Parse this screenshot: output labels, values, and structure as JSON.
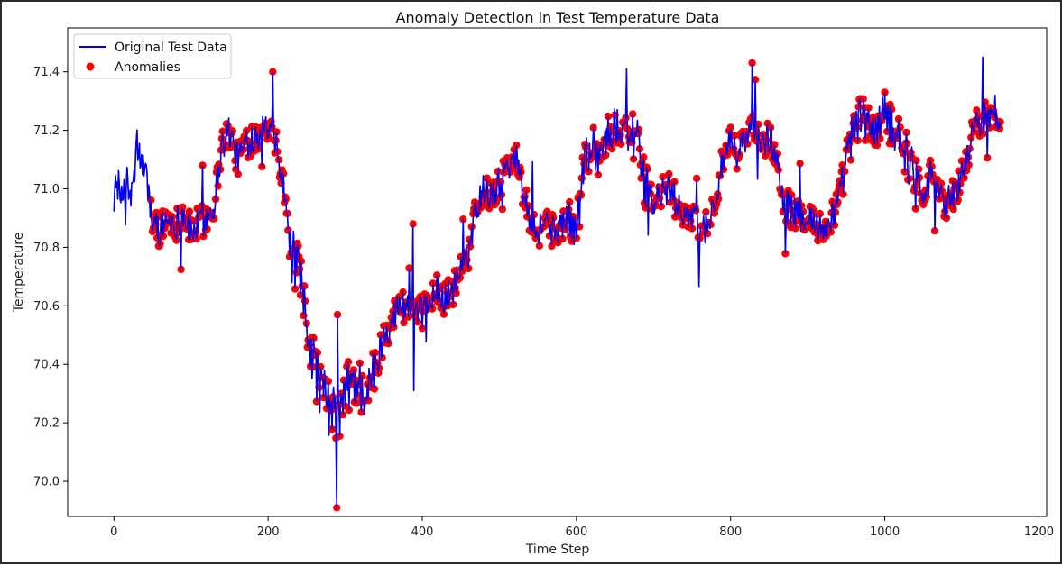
{
  "chart_data": {
    "type": "line",
    "title": "Anomaly Detection in Test Temperature Data",
    "xlabel": "Time Step",
    "ylabel": "Temperature",
    "xlim": [
      -60,
      1210
    ],
    "ylim": [
      69.88,
      71.55
    ],
    "x_ticks": [
      0,
      200,
      400,
      600,
      800,
      1000,
      1200
    ],
    "x_tick_labels": [
      "0",
      "200",
      "400",
      "600",
      "800",
      "1000",
      "1200"
    ],
    "y_ticks": [
      70.0,
      70.2,
      70.4,
      70.6,
      70.8,
      71.0,
      71.2,
      71.4
    ],
    "y_tick_labels": [
      "70.0",
      "70.2",
      "70.4",
      "70.6",
      "70.8",
      "71.0",
      "71.2",
      "71.4"
    ],
    "grid": false,
    "legend_position": "top-left",
    "anomaly_start_step": 48,
    "series": [
      {
        "name": "Original Test Data",
        "kind": "line",
        "color": "#0000ee",
        "x": [
          0,
          5,
          10,
          15,
          20,
          25,
          30,
          35,
          40,
          45,
          50,
          60,
          70,
          80,
          90,
          100,
          110,
          120,
          130,
          140,
          150,
          160,
          170,
          180,
          190,
          200,
          210,
          220,
          230,
          240,
          250,
          260,
          270,
          280,
          290,
          300,
          310,
          320,
          330,
          340,
          350,
          360,
          370,
          380,
          390,
          400,
          410,
          420,
          430,
          440,
          450,
          460,
          470,
          480,
          490,
          500,
          510,
          520,
          530,
          540,
          550,
          560,
          570,
          580,
          590,
          600,
          610,
          620,
          630,
          640,
          650,
          660,
          670,
          680,
          690,
          700,
          710,
          720,
          730,
          740,
          750,
          760,
          770,
          780,
          790,
          800,
          810,
          820,
          830,
          840,
          850,
          860,
          870,
          880,
          890,
          900,
          910,
          920,
          930,
          940,
          950,
          960,
          970,
          980,
          990,
          1000,
          1010,
          1020,
          1030,
          1040,
          1050,
          1060,
          1070,
          1080,
          1090,
          1100,
          1110,
          1120,
          1130,
          1140,
          1150
        ],
        "y": [
          70.98,
          71.02,
          70.95,
          71.05,
          70.97,
          71.0,
          71.15,
          71.1,
          71.05,
          71.0,
          70.88,
          70.86,
          70.9,
          70.88,
          70.92,
          70.85,
          70.88,
          70.9,
          70.95,
          71.15,
          71.2,
          71.1,
          71.15,
          71.18,
          71.2,
          71.2,
          71.15,
          71.0,
          70.78,
          70.7,
          70.55,
          70.4,
          70.3,
          70.25,
          70.2,
          70.3,
          70.35,
          70.32,
          70.3,
          70.38,
          70.5,
          70.55,
          70.6,
          70.6,
          70.55,
          70.58,
          70.62,
          70.65,
          70.62,
          70.66,
          70.72,
          70.78,
          70.95,
          71.0,
          70.98,
          71.02,
          71.08,
          71.12,
          71.0,
          70.9,
          70.85,
          70.9,
          70.85,
          70.88,
          70.9,
          70.85,
          71.1,
          71.15,
          71.12,
          71.18,
          71.2,
          71.22,
          71.2,
          71.15,
          71.0,
          70.95,
          70.98,
          71.0,
          70.95,
          70.92,
          70.9,
          70.85,
          70.88,
          70.95,
          71.1,
          71.15,
          71.12,
          71.18,
          71.2,
          71.15,
          71.18,
          71.1,
          70.95,
          70.92,
          70.9,
          70.92,
          70.88,
          70.85,
          70.9,
          70.95,
          71.1,
          71.2,
          71.25,
          71.22,
          71.2,
          71.25,
          71.22,
          71.18,
          71.1,
          71.05,
          71.0,
          71.05,
          71.0,
          70.95,
          70.98,
          71.05,
          71.15,
          71.22,
          71.25,
          71.22,
          71.25
        ]
      },
      {
        "name": "Anomalies",
        "kind": "scatter",
        "color": "#ff0000"
      }
    ]
  },
  "legend": {
    "line_label": "Original Test Data",
    "scatter_label": "Anomalies"
  }
}
